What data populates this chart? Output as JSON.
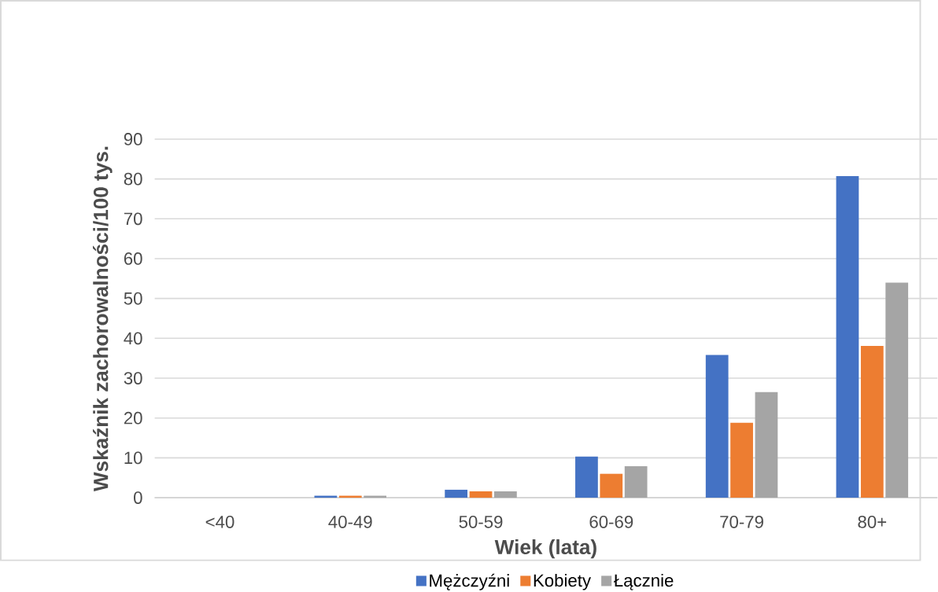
{
  "chart_data": {
    "type": "bar",
    "xlabel": "Wiek (lata)",
    "ylabel": "Wskaźnik zachorowalności/100 tys.",
    "categories": [
      "<40",
      "40-49",
      "50-59",
      "60-69",
      "70-79",
      "80+"
    ],
    "series": [
      {
        "name": "Mężczyźni",
        "color": "#4472c4",
        "values": [
          0,
          0.5,
          2.0,
          10.3,
          35.8,
          80.7
        ]
      },
      {
        "name": "Kobiety",
        "color": "#ed7d31",
        "values": [
          0,
          0.5,
          1.6,
          6.0,
          18.8,
          38.1
        ]
      },
      {
        "name": "Łącznie",
        "color": "#a5a5a5",
        "values": [
          0,
          0.5,
          1.6,
          7.9,
          26.5,
          54.0
        ]
      }
    ],
    "ylim": [
      0,
      90
    ],
    "yticks": [
      0,
      10,
      20,
      30,
      40,
      50,
      60,
      70,
      80,
      90
    ],
    "grid": "y",
    "legend": "bottom"
  }
}
